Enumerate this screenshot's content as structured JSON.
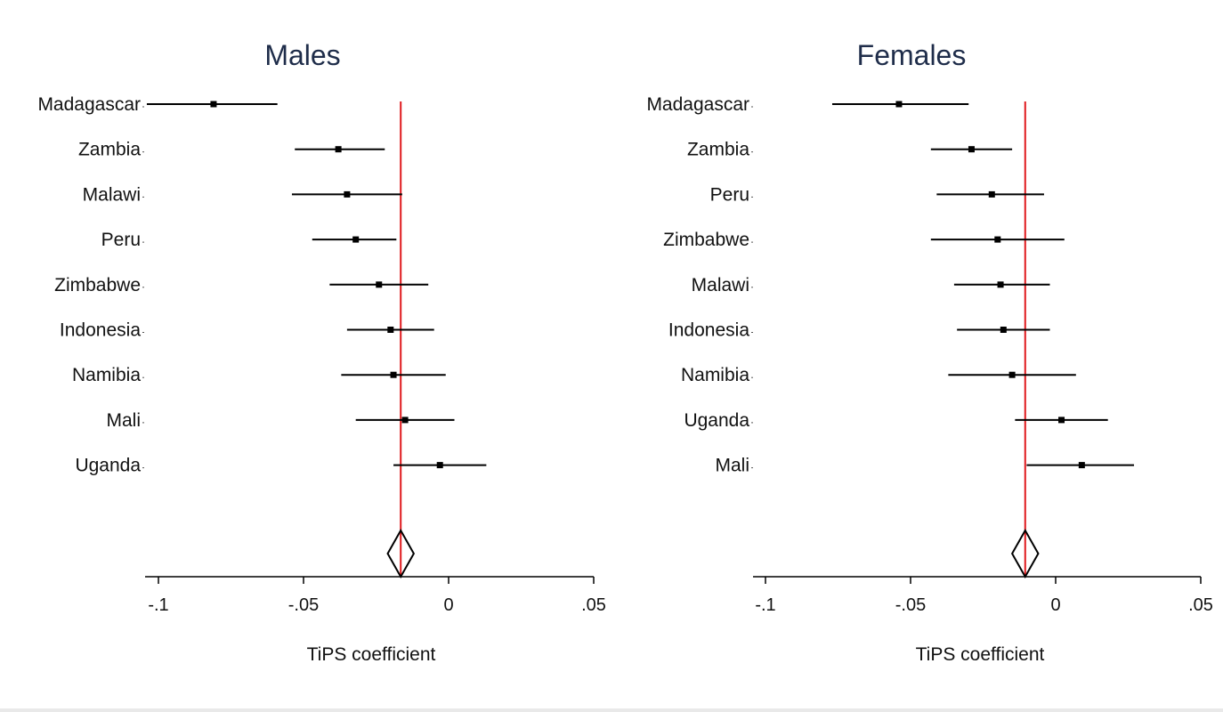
{
  "chart_data": [
    {
      "type": "forest",
      "title": "Males",
      "xlabel": "TiPS coefficient",
      "xlim": [
        -0.1,
        0.05
      ],
      "ticks": [
        -0.1,
        -0.05,
        0,
        0.05
      ],
      "tick_labels": [
        "-.1",
        "-.05",
        "0",
        ".05"
      ],
      "reference_line": -0.0165,
      "reference_color": "#e0191d",
      "studies": [
        {
          "label": "Madagascar",
          "estimate": -0.081,
          "ci": [
            -0.104,
            -0.059
          ]
        },
        {
          "label": "Zambia",
          "estimate": -0.038,
          "ci": [
            -0.053,
            -0.022
          ]
        },
        {
          "label": "Malawi",
          "estimate": -0.035,
          "ci": [
            -0.054,
            -0.016
          ]
        },
        {
          "label": "Peru",
          "estimate": -0.032,
          "ci": [
            -0.047,
            -0.018
          ]
        },
        {
          "label": "Zimbabwe",
          "estimate": -0.024,
          "ci": [
            -0.041,
            -0.007
          ]
        },
        {
          "label": "Indonesia",
          "estimate": -0.02,
          "ci": [
            -0.035,
            -0.005
          ]
        },
        {
          "label": "Namibia",
          "estimate": -0.019,
          "ci": [
            -0.037,
            -0.001
          ]
        },
        {
          "label": "Mali",
          "estimate": -0.015,
          "ci": [
            -0.032,
            0.002
          ]
        },
        {
          "label": "Uganda",
          "estimate": -0.003,
          "ci": [
            -0.019,
            0.013
          ]
        }
      ],
      "overall": {
        "estimate": -0.0165,
        "ci": [
          -0.021,
          -0.012
        ]
      }
    },
    {
      "type": "forest",
      "title": "Females",
      "xlabel": "TiPS coefficient",
      "xlim": [
        -0.1,
        0.05
      ],
      "ticks": [
        -0.1,
        -0.05,
        0,
        0.05
      ],
      "tick_labels": [
        "-.1",
        "-.05",
        "0",
        ".05"
      ],
      "reference_line": -0.0105,
      "reference_color": "#e0191d",
      "studies": [
        {
          "label": "Madagascar",
          "estimate": -0.054,
          "ci": [
            -0.077,
            -0.03
          ]
        },
        {
          "label": "Zambia",
          "estimate": -0.029,
          "ci": [
            -0.043,
            -0.015
          ]
        },
        {
          "label": "Peru",
          "estimate": -0.022,
          "ci": [
            -0.041,
            -0.004
          ]
        },
        {
          "label": "Zimbabwe",
          "estimate": -0.02,
          "ci": [
            -0.043,
            0.003
          ]
        },
        {
          "label": "Malawi",
          "estimate": -0.019,
          "ci": [
            -0.035,
            -0.002
          ]
        },
        {
          "label": "Indonesia",
          "estimate": -0.018,
          "ci": [
            -0.034,
            -0.002
          ]
        },
        {
          "label": "Namibia",
          "estimate": -0.015,
          "ci": [
            -0.037,
            0.007
          ]
        },
        {
          "label": "Uganda",
          "estimate": 0.002,
          "ci": [
            -0.014,
            0.018
          ]
        },
        {
          "label": "Mali",
          "estimate": 0.009,
          "ci": [
            -0.01,
            0.027
          ]
        }
      ],
      "overall": {
        "estimate": -0.0105,
        "ci": [
          -0.015,
          -0.006
        ]
      }
    }
  ]
}
